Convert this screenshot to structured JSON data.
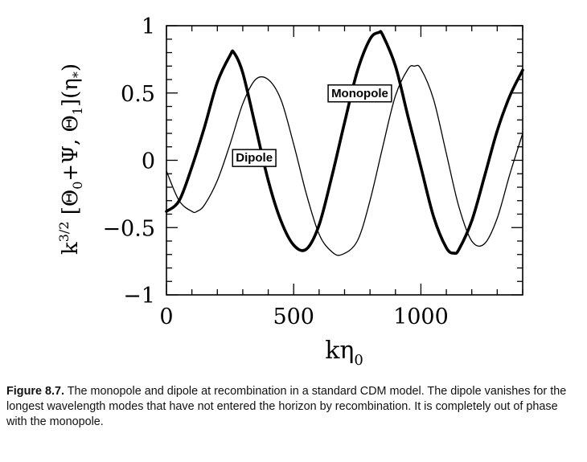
{
  "chart_data": {
    "type": "line",
    "title": "",
    "xlabel": "kη₀",
    "ylabel": "k^{3/2} [Θ₀+Ψ, Θ₁](η*)",
    "xlim": [
      0,
      1400
    ],
    "ylim": [
      -1,
      1
    ],
    "x_ticks": [
      0,
      500,
      1000
    ],
    "x_tick_labels": [
      "0",
      "500",
      "1000"
    ],
    "y_ticks": [
      -1,
      -0.5,
      0,
      0.5,
      1
    ],
    "y_tick_labels": [
      "−1",
      "−0.5",
      "0",
      "0.5",
      "1"
    ],
    "grid": false,
    "series": [
      {
        "name": "Monopole",
        "style": "thick",
        "x": [
          0,
          50,
          100,
          150,
          200,
          250,
          265,
          300,
          350,
          400,
          450,
          500,
          550,
          600,
          650,
          700,
          750,
          800,
          835,
          850,
          900,
          950,
          1000,
          1050,
          1100,
          1130,
          1150,
          1200,
          1250,
          1300,
          1350,
          1400
        ],
        "y": [
          -0.38,
          -0.3,
          -0.05,
          0.25,
          0.58,
          0.78,
          0.8,
          0.65,
          0.25,
          -0.15,
          -0.45,
          -0.63,
          -0.66,
          -0.48,
          -0.12,
          0.28,
          0.66,
          0.9,
          0.95,
          0.93,
          0.7,
          0.32,
          -0.05,
          -0.42,
          -0.65,
          -0.69,
          -0.66,
          -0.45,
          -0.12,
          0.22,
          0.48,
          0.67
        ]
      },
      {
        "name": "Dipole",
        "style": "thin",
        "x": [
          0,
          50,
          100,
          120,
          150,
          200,
          250,
          300,
          350,
          400,
          450,
          500,
          550,
          600,
          650,
          690,
          750,
          800,
          850,
          900,
          950,
          975,
          1000,
          1050,
          1100,
          1150,
          1200,
          1250,
          1300,
          1350,
          1400
        ],
        "y": [
          -0.08,
          -0.3,
          -0.38,
          -0.38,
          -0.33,
          -0.15,
          0.12,
          0.42,
          0.6,
          0.6,
          0.45,
          0.12,
          -0.25,
          -0.55,
          -0.68,
          -0.7,
          -0.6,
          -0.3,
          0.1,
          0.48,
          0.68,
          0.7,
          0.68,
          0.45,
          0.05,
          -0.35,
          -0.6,
          -0.62,
          -0.43,
          -0.1,
          0.2
        ]
      }
    ],
    "annotations": [
      {
        "text": "Monopole",
        "x": 760,
        "y": 0.5
      },
      {
        "text": "Dipole",
        "x": 345,
        "y": 0.02
      }
    ]
  },
  "caption": {
    "figure_label": "Figure 8.7.",
    "text": " The monopole and dipole at recombination in a standard CDM model. The dipole vanishes for the longest wavelength modes that have not entered the horizon by recombination. It is completely out of phase with the monopole."
  }
}
